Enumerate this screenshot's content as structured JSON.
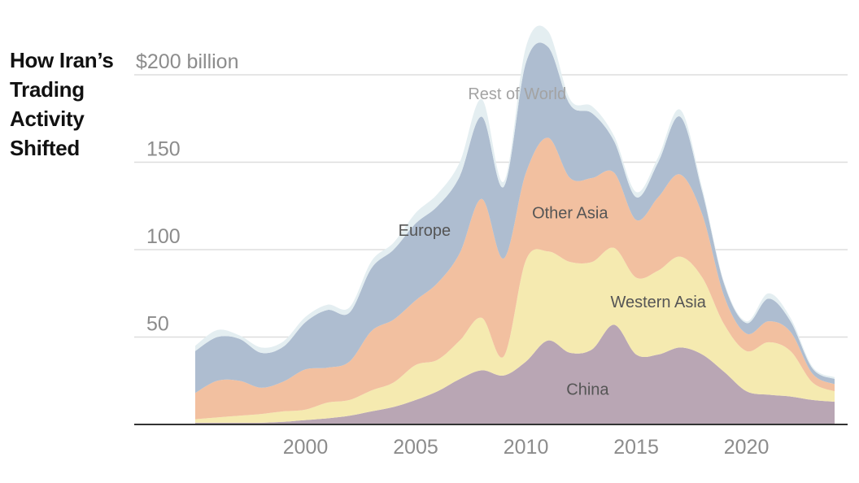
{
  "chart_data": {
    "type": "area",
    "stacked": true,
    "title": "How Iran’s\nTrading\nActivity\nShifted",
    "xlabel": "",
    "ylabel": "",
    "y_unit_label": "$200 billion",
    "ylim": [
      0,
      200
    ],
    "xlim": [
      1995,
      2024
    ],
    "y_ticks": [
      50,
      100,
      150,
      200
    ],
    "y_tick_labels": [
      "50",
      "100",
      "150",
      "$200 billion"
    ],
    "x_ticks": [
      2000,
      2005,
      2010,
      2015,
      2020
    ],
    "x_tick_labels": [
      "2000",
      "2005",
      "2010",
      "2015",
      "2020"
    ],
    "grid": true,
    "legend": "inline",
    "x": [
      1995,
      1996,
      1997,
      1998,
      1999,
      2000,
      2001,
      2002,
      2003,
      2004,
      2005,
      2006,
      2007,
      2008,
      2009,
      2010,
      2011,
      2012,
      2013,
      2014,
      2015,
      2016,
      2017,
      2018,
      2019,
      2020,
      2021,
      2022,
      2023,
      2024
    ],
    "series": [
      {
        "name": "China",
        "color": "#b9a6b4",
        "values": [
          1,
          1,
          1,
          1,
          1.5,
          2.5,
          3.5,
          5,
          7.5,
          10,
          14,
          19,
          26,
          31,
          28,
          36,
          48,
          41,
          43,
          57,
          40,
          40,
          44,
          40,
          30,
          19,
          17,
          16,
          14,
          13
        ]
      },
      {
        "name": "Western Asia",
        "color": "#f5eab0",
        "values": [
          2,
          3,
          4,
          5,
          6,
          6,
          9,
          9,
          12,
          14,
          20,
          18,
          22,
          30,
          11,
          58,
          51,
          52,
          50,
          44,
          44,
          48,
          52,
          44,
          27,
          23,
          30,
          26,
          10,
          6
        ]
      },
      {
        "name": "Other Asia",
        "color": "#f2c0a0",
        "values": [
          15,
          21,
          20,
          15,
          17,
          23,
          20,
          22,
          34,
          36,
          37,
          44,
          50,
          68,
          56,
          50,
          65,
          48,
          48,
          43,
          33,
          42,
          47,
          36,
          16,
          10,
          12,
          11,
          5,
          4
        ]
      },
      {
        "name": "Europe",
        "color": "#aebdd0",
        "values": [
          24,
          25,
          24,
          20,
          20,
          27,
          33,
          28,
          36,
          40,
          44,
          44,
          44,
          47,
          41,
          63,
          52,
          42,
          37,
          18,
          13,
          20,
          33,
          13,
          7,
          6,
          13,
          6,
          3,
          3
        ]
      },
      {
        "name": "Rest of World",
        "color": "#e4eef1",
        "values": [
          3,
          4,
          2,
          3,
          3,
          3,
          3,
          3,
          4,
          4,
          6,
          7,
          8,
          10,
          3,
          9,
          9,
          3,
          4,
          3,
          3,
          3,
          4,
          2,
          1,
          1,
          3,
          2,
          1,
          1
        ]
      }
    ]
  }
}
